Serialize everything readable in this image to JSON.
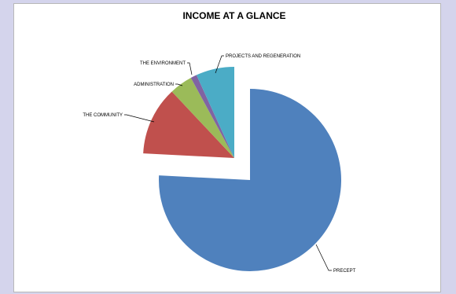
{
  "chart_data": {
    "type": "pie",
    "title": "INCOME AT A GLANCE",
    "exploded": true,
    "start_angle_deg": 0,
    "slices": [
      {
        "label": "PRECEPT",
        "value": 75.8,
        "color": "#4f81bd"
      },
      {
        "label": "THE COMMUNITY",
        "value": 12.2,
        "color": "#c0504d"
      },
      {
        "label": "ADMINISTRATION",
        "value": 4.1,
        "color": "#9bbb59"
      },
      {
        "label": "THE ENVIRONMENT",
        "value": 1.1,
        "color": "#8064a2"
      },
      {
        "label": "PROJECTS AND REGENERATION",
        "value": 6.8,
        "color": "#4bacc6"
      }
    ]
  }
}
